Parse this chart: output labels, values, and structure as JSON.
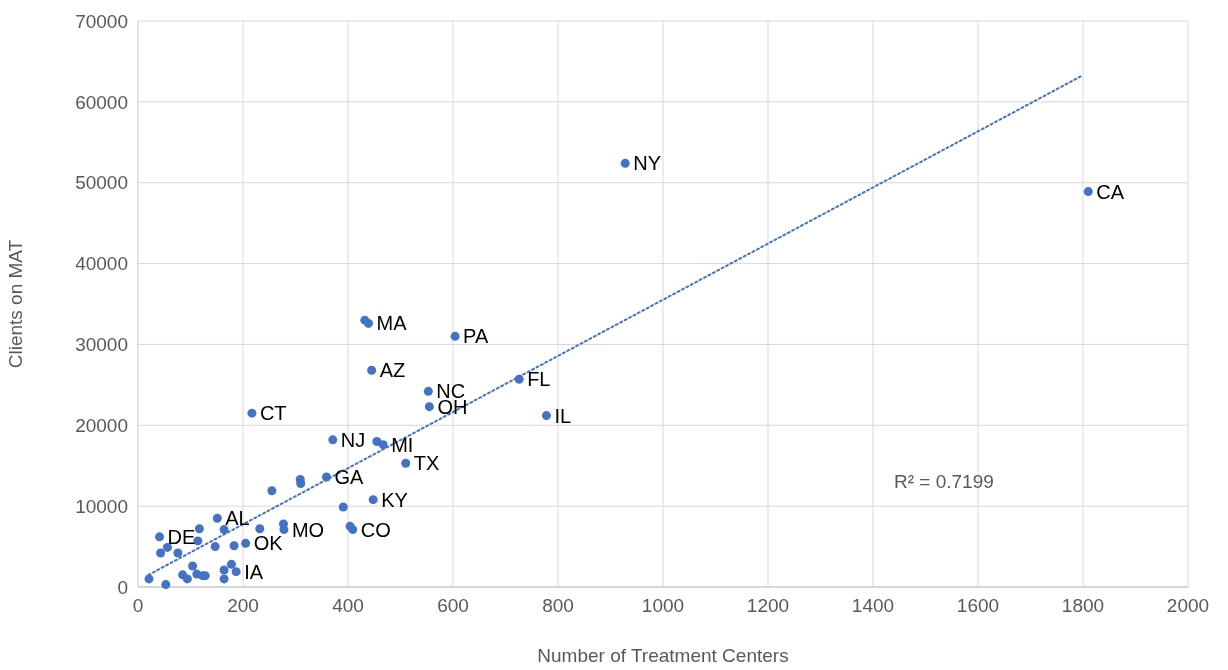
{
  "chart_data": {
    "type": "scatter",
    "xlabel": "Number of Treatment Centers",
    "ylabel": "Clients on MAT",
    "xlim": [
      0,
      2000
    ],
    "xticks": [
      0,
      200,
      400,
      600,
      800,
      1000,
      1200,
      1400,
      1600,
      1800,
      2000
    ],
    "ylim": [
      0,
      70000
    ],
    "yticks": [
      0,
      10000,
      20000,
      30000,
      40000,
      50000,
      60000,
      70000
    ],
    "grid": true,
    "series": [
      {
        "color": "#4472c4",
        "marker": "circle",
        "x": [
          928,
          1810,
          432,
          439,
          604,
          445,
          553,
          555,
          726,
          778,
          217,
          371,
          455,
          467,
          510,
          359,
          309,
          310,
          255,
          448,
          391,
          151,
          404,
          409,
          277,
          278,
          232,
          164,
          117,
          41,
          114,
          205,
          183,
          147,
          56,
          43,
          76,
          104,
          178,
          187,
          164,
          85,
          94,
          112,
          123,
          128,
          164,
          21,
          53
        ],
        "values": [
          52400,
          48900,
          33000,
          32600,
          31000,
          26800,
          24200,
          22300,
          25700,
          21200,
          21500,
          18200,
          18000,
          17600,
          15300,
          13600,
          13300,
          12800,
          11900,
          10800,
          9900,
          8500,
          7500,
          7100,
          7800,
          7100,
          7200,
          7100,
          7200,
          6200,
          5700,
          5400,
          5100,
          5000,
          4900,
          4200,
          4200,
          2600,
          2800,
          1900,
          2100,
          1500,
          1000,
          1600,
          1400,
          1400,
          1000,
          1000,
          300
        ]
      },
      {
        "type": "line",
        "color": "#4472c4",
        "line_style": "dotted",
        "marker": "none",
        "x": [
          20,
          1800
        ],
        "values": [
          1500,
          63300
        ]
      }
    ],
    "annotations": [
      {
        "text": "NY",
        "x": 928,
        "y": 52400
      },
      {
        "text": "CA",
        "x": 1810,
        "y": 48900
      },
      {
        "text": "MA",
        "x": 439,
        "y": 32600
      },
      {
        "text": "PA",
        "x": 604,
        "y": 31000
      },
      {
        "text": "AZ",
        "x": 445,
        "y": 26800
      },
      {
        "text": "NC",
        "x": 553,
        "y": 24200
      },
      {
        "text": "OH",
        "x": 555,
        "y": 22300
      },
      {
        "text": "FL",
        "x": 726,
        "y": 25700
      },
      {
        "text": "IL",
        "x": 778,
        "y": 21200
      },
      {
        "text": "CT",
        "x": 217,
        "y": 21500
      },
      {
        "text": "NJ",
        "x": 371,
        "y": 18200
      },
      {
        "text": "MI",
        "x": 467,
        "y": 17600
      },
      {
        "text": "TX",
        "x": 510,
        "y": 15300
      },
      {
        "text": "GA",
        "x": 359,
        "y": 13600
      },
      {
        "text": "KY",
        "x": 448,
        "y": 10800
      },
      {
        "text": "AL",
        "x": 151,
        "y": 8500
      },
      {
        "text": "CO",
        "x": 409,
        "y": 7100
      },
      {
        "text": "MO",
        "x": 278,
        "y": 7100
      },
      {
        "text": "DE",
        "x": 41,
        "y": 6200
      },
      {
        "text": "OK",
        "x": 205,
        "y": 5400
      },
      {
        "text": "IA",
        "x": 187,
        "y": 1900
      },
      "R² = 0.7199"
    ]
  }
}
